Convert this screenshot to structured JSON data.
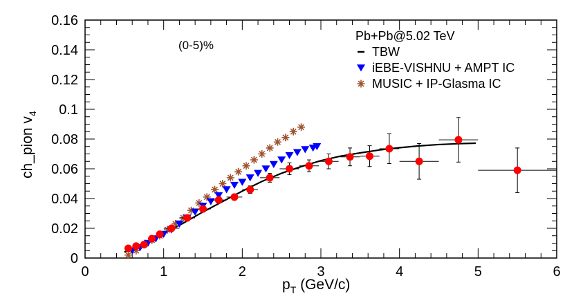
{
  "chart_data": {
    "type": "scatter",
    "annotation": "(0-5)%",
    "xlabel": "p",
    "xlabel_sub": "T",
    "xlabel_unit": " (GeV/c)",
    "ylabel": "ch_pion v",
    "ylabel_sub": "4",
    "xlim": [
      0,
      6
    ],
    "ylim": [
      0,
      0.16
    ],
    "x_ticks": [
      0,
      1,
      2,
      3,
      4,
      5,
      6
    ],
    "y_ticks": [
      0,
      0.02,
      0.04,
      0.06,
      0.08,
      0.1,
      0.12,
      0.14,
      0.16
    ],
    "x_tick_labels": [
      "0",
      "1",
      "2",
      "3",
      "4",
      "5",
      "6"
    ],
    "y_tick_labels": [
      "0",
      "0.02",
      "0.04",
      "0.06",
      "0.08",
      "0.1",
      "0.12",
      "0.14",
      "0.16"
    ],
    "legend": {
      "title": "Pb+Pb@5.02 TeV",
      "entries": [
        "TBW",
        "iEBE-VISHNU + AMPT IC",
        "MUSIC + IP-Glasma IC"
      ]
    },
    "series": [
      {
        "name": "data",
        "marker": "circle",
        "color": "#ff0000",
        "x": [
          0.55,
          0.65,
          0.75,
          0.85,
          0.95,
          1.1,
          1.3,
          1.5,
          1.7,
          1.9,
          2.1,
          2.35,
          2.6,
          2.85,
          3.1,
          3.37,
          3.62,
          3.87,
          4.25,
          4.75,
          5.5
        ],
        "y": [
          0.0065,
          0.008,
          0.009,
          0.013,
          0.016,
          0.02,
          0.027,
          0.033,
          0.039,
          0.041,
          0.046,
          0.054,
          0.06,
          0.062,
          0.065,
          0.068,
          0.0685,
          0.0735,
          0.065,
          0.0795,
          0.059
        ],
        "xerr": [
          0.05,
          0.05,
          0.05,
          0.05,
          0.05,
          0.1,
          0.1,
          0.1,
          0.1,
          0.1,
          0.1,
          0.125,
          0.125,
          0.125,
          0.125,
          0.125,
          0.125,
          0.125,
          0.25,
          0.25,
          0.5
        ],
        "yerr": [
          0.001,
          0.001,
          0.001,
          0.001,
          0.001,
          0.0015,
          0.0015,
          0.0015,
          0.0015,
          0.002,
          0.0025,
          0.003,
          0.004,
          0.004,
          0.005,
          0.006,
          0.007,
          0.01,
          0.012,
          0.015,
          0.015
        ]
      },
      {
        "name": "TBW",
        "marker": "line",
        "color": "#000000",
        "x": [
          0.5,
          0.75,
          1.0,
          1.25,
          1.5,
          1.75,
          2.0,
          2.25,
          2.5,
          2.75,
          3.0,
          3.25,
          3.5,
          3.75,
          4.0,
          4.25,
          4.5,
          4.75,
          4.97
        ],
        "y": [
          0.004,
          0.0095,
          0.0165,
          0.0235,
          0.031,
          0.038,
          0.045,
          0.0515,
          0.057,
          0.0615,
          0.0655,
          0.0685,
          0.0707,
          0.0727,
          0.0742,
          0.0754,
          0.0763,
          0.0769,
          0.0772
        ]
      },
      {
        "name": "iEBE-VISHNU + AMPT IC",
        "marker": "triangle-down",
        "color": "#0000ff",
        "x": [
          0.6,
          0.7,
          0.8,
          0.9,
          1.0,
          1.1,
          1.2,
          1.3,
          1.4,
          1.5,
          1.6,
          1.7,
          1.8,
          1.9,
          2.0,
          2.1,
          2.2,
          2.3,
          2.4,
          2.5,
          2.6,
          2.7,
          2.8,
          2.9,
          2.95
        ],
        "y": [
          0.005,
          0.007,
          0.01,
          0.013,
          0.016,
          0.019,
          0.023,
          0.027,
          0.031,
          0.035,
          0.038,
          0.042,
          0.046,
          0.049,
          0.051,
          0.054,
          0.057,
          0.06,
          0.063,
          0.066,
          0.069,
          0.071,
          0.073,
          0.074,
          0.075
        ]
      },
      {
        "name": "MUSIC + IP-Glasma IC",
        "marker": "star",
        "color": "#a0522d",
        "x": [
          0.55,
          0.65,
          0.75,
          0.85,
          0.95,
          1.05,
          1.15,
          1.25,
          1.35,
          1.45,
          1.55,
          1.65,
          1.75,
          1.85,
          1.95,
          2.05,
          2.15,
          2.25,
          2.35,
          2.45,
          2.55,
          2.65,
          2.75
        ],
        "y": [
          0.002,
          0.005,
          0.009,
          0.012,
          0.015,
          0.019,
          0.023,
          0.027,
          0.032,
          0.037,
          0.041,
          0.046,
          0.05,
          0.054,
          0.058,
          0.062,
          0.066,
          0.07,
          0.074,
          0.078,
          0.081,
          0.085,
          0.088
        ]
      }
    ]
  }
}
